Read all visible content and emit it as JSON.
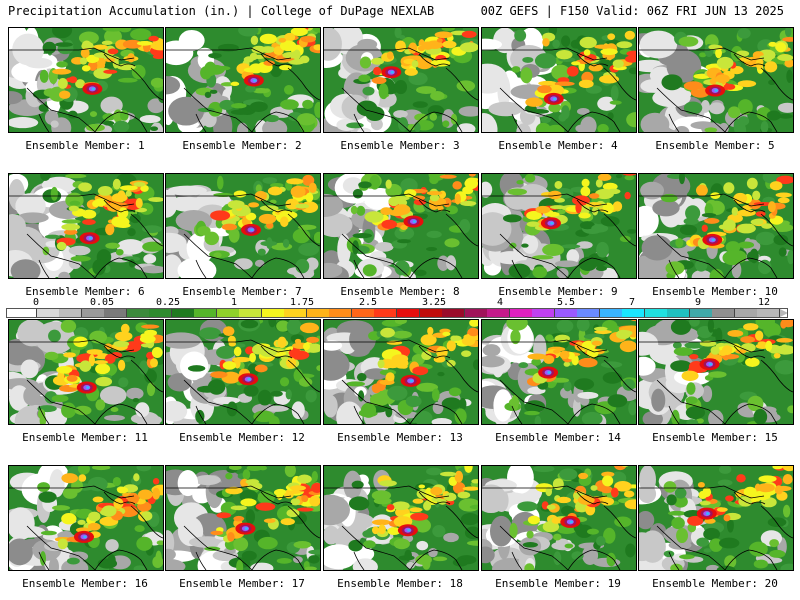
{
  "header": {
    "title": "Precipitation Accumulation (in.) | College of DuPage NEXLAB",
    "run_info": "00Z GEFS | F150 Valid: 06Z FRI JUN 13 2025"
  },
  "colorbar": {
    "labels": [
      "0",
      "0.05",
      "0.25",
      "1",
      "1.75",
      "2.5",
      "3.25",
      "4",
      "5.5",
      "7",
      "9",
      "12"
    ],
    "colors": [
      "#ffffff",
      "#d9d9d9",
      "#bdbdbd",
      "#9a9a9a",
      "#7a7a7a",
      "#3c8a3c",
      "#2e8b2e",
      "#1f7a1f",
      "#55b52a",
      "#8fd12a",
      "#c8e63a",
      "#f5f51e",
      "#ffd21e",
      "#ffb31a",
      "#ff8c1a",
      "#ff661a",
      "#ff3a1a",
      "#e60d0d",
      "#c00a0a",
      "#9a0a2a",
      "#a0135a",
      "#c41a8a",
      "#e020c0",
      "#c040f0",
      "#9a5aff",
      "#6a8aff",
      "#3ab4ff",
      "#1ae6ff",
      "#20e0e0",
      "#20c0c0",
      "#40a8a8",
      "#909090",
      "#a8a8a8",
      "#b8b8b8"
    ]
  },
  "members": [
    {
      "label": "Ensemble Member: 1"
    },
    {
      "label": "Ensemble Member: 2"
    },
    {
      "label": "Ensemble Member: 3"
    },
    {
      "label": "Ensemble Member: 4"
    },
    {
      "label": "Ensemble Member: 5"
    },
    {
      "label": "Ensemble Member: 6"
    },
    {
      "label": "Ensemble Member: 7"
    },
    {
      "label": "Ensemble Member: 8"
    },
    {
      "label": "Ensemble Member: 9"
    },
    {
      "label": "Ensemble Member: 10"
    },
    {
      "label": "Ensemble Member: 11"
    },
    {
      "label": "Ensemble Member: 12"
    },
    {
      "label": "Ensemble Member: 13"
    },
    {
      "label": "Ensemble Member: 14"
    },
    {
      "label": "Ensemble Member: 15"
    },
    {
      "label": "Ensemble Member: 16"
    },
    {
      "label": "Ensemble Member: 17"
    },
    {
      "label": "Ensemble Member: 18"
    },
    {
      "label": "Ensemble Member: 19"
    },
    {
      "label": "Ensemble Member: 20"
    }
  ]
}
